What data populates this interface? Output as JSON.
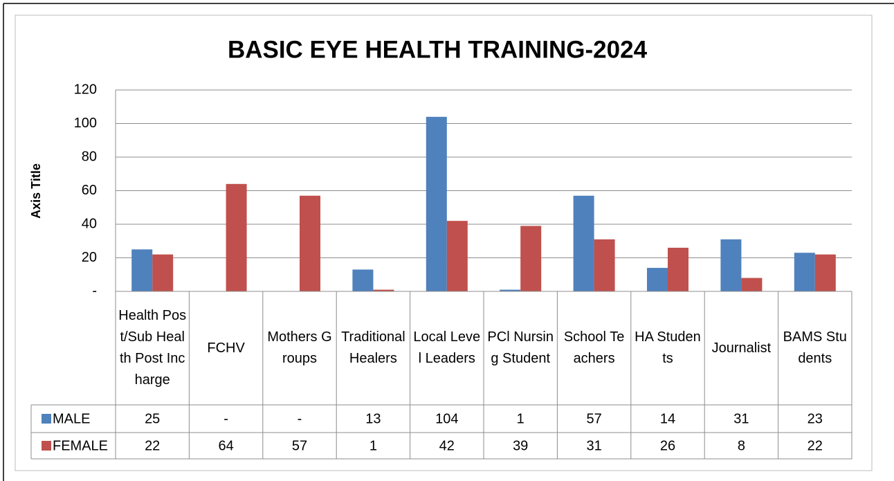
{
  "chart_data": {
    "type": "bar",
    "title": "BASIC EYE HEALTH TRAINING-2024",
    "y_axis_label": "Axis Title",
    "categories": [
      "Health Post/Sub Health Post Incharge",
      "FCHV",
      "Mothers Groups",
      "Traditional Healers",
      "Local Level Leaders",
      "PCl Nursing Student",
      "School Teachers",
      "HA Students",
      "Journalist",
      "BAMS Students"
    ],
    "series": [
      {
        "name": "MALE",
        "color": "#4f81bd",
        "values": [
          25,
          0,
          0,
          13,
          104,
          1,
          57,
          14,
          31,
          23
        ],
        "value_labels": [
          "25",
          "-",
          "-",
          "13",
          "104",
          "1",
          "57",
          "14",
          "31",
          "23"
        ]
      },
      {
        "name": "FEMALE",
        "color": "#c0504d",
        "values": [
          22,
          64,
          57,
          1,
          42,
          39,
          31,
          26,
          8,
          22
        ],
        "value_labels": [
          "22",
          "64",
          "57",
          "1",
          "42",
          "39",
          "31",
          "26",
          "8",
          "22"
        ]
      }
    ],
    "ylim": [
      0,
      120
    ],
    "yticks": [
      {
        "value": 0,
        "label": "-"
      },
      20,
      40,
      60,
      80,
      100,
      120
    ],
    "grid": true,
    "data_table": true
  }
}
